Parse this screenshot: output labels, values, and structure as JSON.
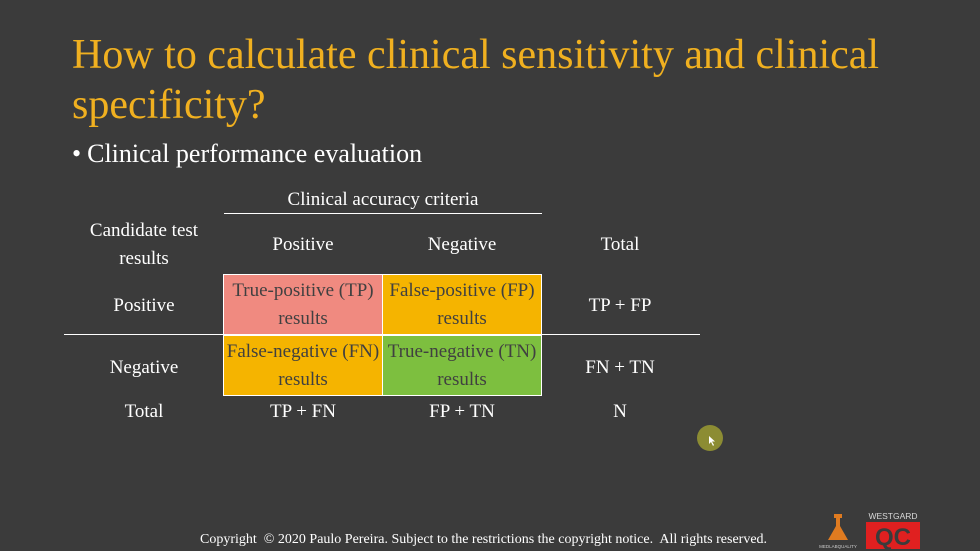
{
  "slide": {
    "title": "How to calculate clinical sensitivity and clinical specificity?",
    "bullet": "Clinical performance evaluation",
    "copyright": "Copyright  © 2020 Paulo Pereira. Subject to the restrictions the copyright notice.  All rights reserved."
  },
  "table": {
    "criteria_header": "Clinical accuracy criteria",
    "row_header": "Candidate test results",
    "col_positive": "Positive",
    "col_negative": "Negative",
    "col_total": "Total",
    "row_positive": "Positive",
    "row_negative": "Negative",
    "row_total": "Total",
    "tp": "True-positive (TP) results",
    "fp": "False-positive (FP) results",
    "fn": "False-negative (FN) results",
    "tn": "True-negative (TN) results",
    "tp_fp": "TP + FP",
    "fn_tn": "FN + TN",
    "tp_fn": "TP + FN",
    "fp_tn": "FP + TN",
    "n": "N"
  },
  "logos": {
    "left_text": "MEDLABQUALITY",
    "right_top": "WESTGARD",
    "right_mark": "QC"
  },
  "colors": {
    "background": "#3b3b3b",
    "title": "#f0b020",
    "tp": "#f08a80",
    "fp": "#f5b400",
    "fn": "#f5b400",
    "tn": "#7dbf3f"
  }
}
